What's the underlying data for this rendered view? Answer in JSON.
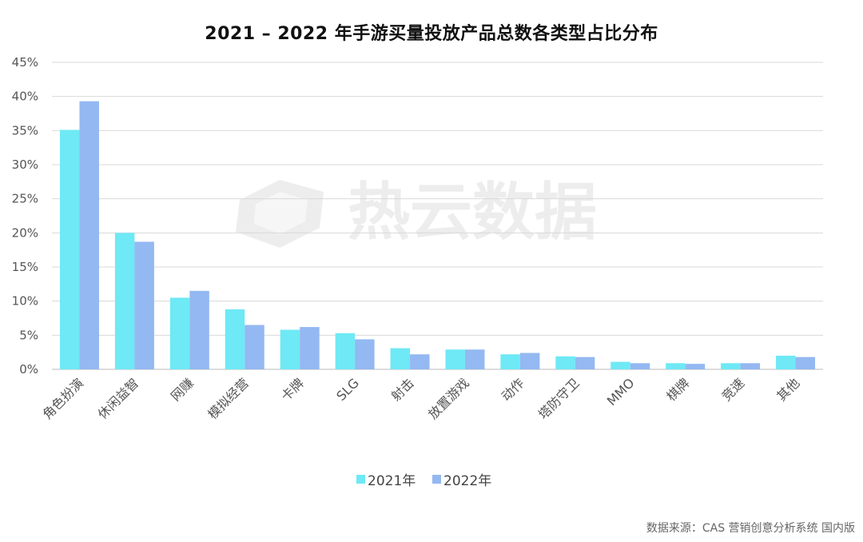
{
  "title": "2021 – 2022 年手游买量投放产品总数各类型占比分布",
  "source_note": "数据来源：CAS 营销创意分析系统 国内版",
  "watermark": "热云数据",
  "chart_data": {
    "type": "bar",
    "categories": [
      "角色扮演",
      "休闲益智",
      "网赚",
      "模拟经营",
      "卡牌",
      "SLG",
      "射击",
      "放置游戏",
      "动作",
      "塔防守卫",
      "MMO",
      "棋牌",
      "竞速",
      "其他"
    ],
    "series": [
      {
        "name": "2021年",
        "color": "#6ee9f5",
        "values": [
          35.1,
          20.0,
          10.5,
          8.8,
          5.8,
          5.3,
          3.1,
          2.9,
          2.2,
          1.9,
          1.1,
          0.9,
          0.9,
          2.0
        ]
      },
      {
        "name": "2022年",
        "color": "#94b8f1",
        "values": [
          39.3,
          18.7,
          11.5,
          6.5,
          6.2,
          4.4,
          2.2,
          2.9,
          2.4,
          1.8,
          0.9,
          0.8,
          0.9,
          1.8
        ]
      }
    ],
    "yticks": [
      "0%",
      "5%",
      "10%",
      "15%",
      "20%",
      "25%",
      "30%",
      "35%",
      "40%",
      "45%"
    ],
    "ylim": [
      0,
      45
    ],
    "grid": true,
    "legend_position": "bottom"
  }
}
